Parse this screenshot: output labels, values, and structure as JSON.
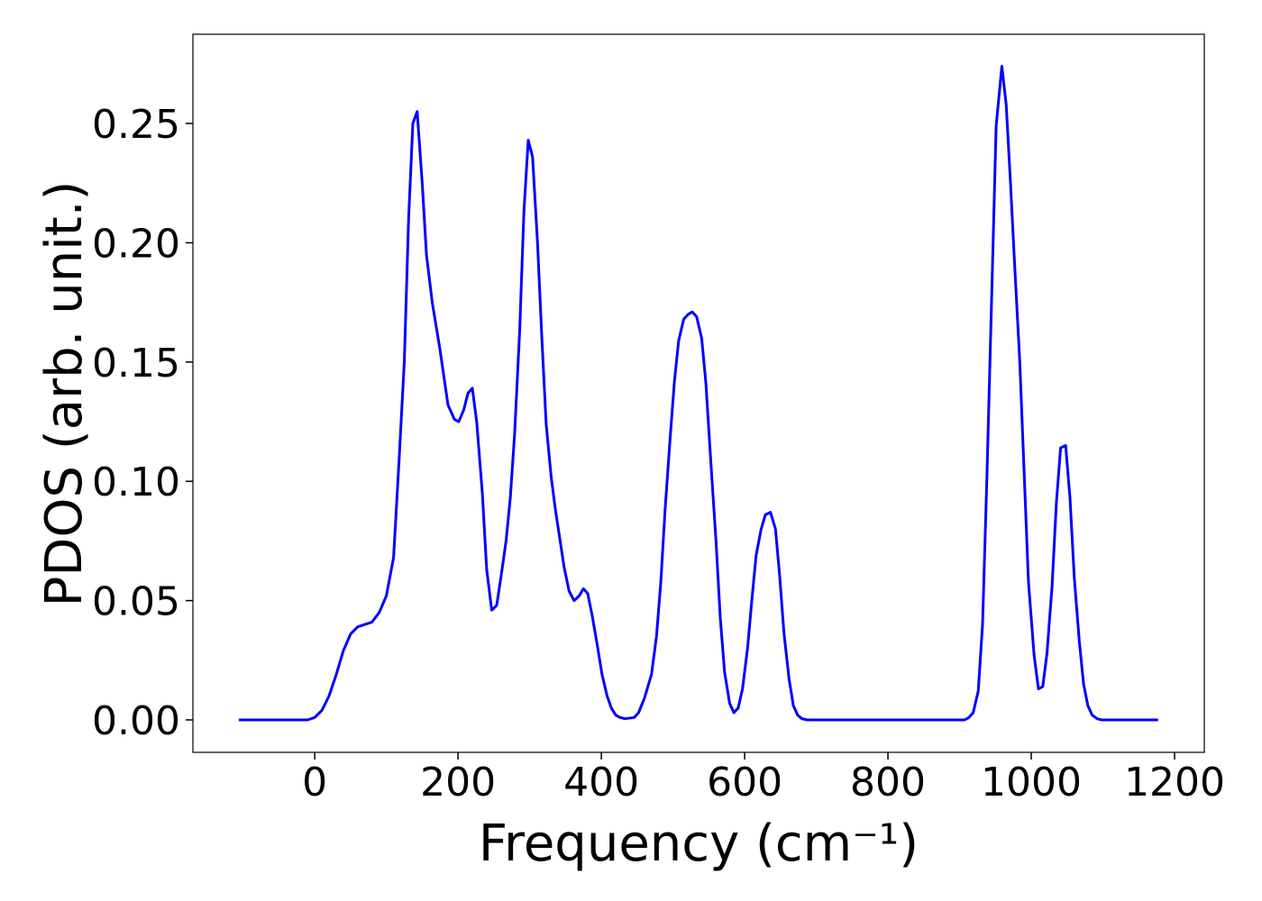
{
  "chart_data": {
    "type": "line",
    "xlabel": "Frequency (cm⁻¹)",
    "ylabel": "PDOS (arb. unit.)",
    "xlim": [
      -170,
      1241.5
    ],
    "ylim": [
      -0.0136,
      0.2874
    ],
    "xticks": [
      0,
      200,
      400,
      600,
      800,
      1000,
      1200
    ],
    "yticks": [
      {
        "value": 0,
        "label": "0.00"
      },
      {
        "value": 0.05,
        "label": "0.05"
      },
      {
        "value": 0.1,
        "label": "0.10"
      },
      {
        "value": 0.15,
        "label": "0.15"
      },
      {
        "value": 0.2,
        "label": "0.20"
      },
      {
        "value": 0.25,
        "label": "0.25"
      }
    ],
    "grid": false,
    "series": [
      {
        "color": "#0000ff",
        "x": [
          -106,
          -10,
          0,
          10,
          20,
          30,
          40,
          50,
          60,
          70,
          80,
          90,
          100,
          110,
          118,
          125,
          131,
          137,
          143,
          150,
          156,
          164,
          175,
          186,
          195,
          201,
          208,
          214,
          220,
          226,
          234,
          240,
          247,
          254,
          260,
          267,
          273,
          279,
          286,
          292,
          298,
          304,
          311,
          317,
          323,
          330,
          336,
          342,
          348,
          355,
          362,
          369,
          375,
          381,
          387,
          394,
          401,
          408,
          414,
          420,
          426,
          433,
          446,
          452,
          460,
          470,
          477,
          483,
          489,
          496,
          502,
          508,
          515,
          521,
          527,
          533,
          540,
          546,
          552,
          560,
          566,
          572,
          579,
          585,
          591,
          597,
          604,
          610,
          616,
          623,
          629,
          636,
          643,
          649,
          655,
          662,
          668,
          674,
          680,
          687,
          907,
          913,
          919,
          926,
          932,
          938,
          945,
          951,
          959,
          965,
          971,
          977,
          984,
          990,
          996,
          1004,
          1010,
          1016,
          1022,
          1029,
          1035,
          1041,
          1048,
          1054,
          1060,
          1067,
          1073,
          1079,
          1085,
          1092,
          1098,
          1177
        ],
        "values": [
          0,
          0,
          0.001,
          0.004,
          0.01,
          0.019,
          0.029,
          0.036,
          0.039,
          0.04,
          0.041,
          0.045,
          0.052,
          0.068,
          0.11,
          0.15,
          0.21,
          0.25,
          0.255,
          0.225,
          0.195,
          0.175,
          0.155,
          0.132,
          0.126,
          0.125,
          0.13,
          0.137,
          0.139,
          0.125,
          0.095,
          0.063,
          0.046,
          0.048,
          0.06,
          0.075,
          0.093,
          0.12,
          0.163,
          0.213,
          0.243,
          0.236,
          0.2,
          0.16,
          0.124,
          0.102,
          0.088,
          0.076,
          0.064,
          0.054,
          0.05,
          0.052,
          0.055,
          0.053,
          0.044,
          0.032,
          0.019,
          0.01,
          0.005,
          0.002,
          0.001,
          0.0005,
          0.001,
          0.003,
          0.009,
          0.019,
          0.035,
          0.058,
          0.088,
          0.118,
          0.142,
          0.159,
          0.168,
          0.17,
          0.171,
          0.169,
          0.16,
          0.141,
          0.112,
          0.075,
          0.043,
          0.02,
          0.007,
          0.003,
          0.005,
          0.013,
          0.03,
          0.05,
          0.069,
          0.08,
          0.086,
          0.087,
          0.08,
          0.06,
          0.036,
          0.017,
          0.006,
          0.002,
          0.0005,
          0,
          0,
          0.001,
          0.003,
          0.012,
          0.04,
          0.1,
          0.18,
          0.249,
          0.274,
          0.258,
          0.225,
          0.19,
          0.15,
          0.104,
          0.058,
          0.027,
          0.013,
          0.014,
          0.028,
          0.056,
          0.091,
          0.114,
          0.115,
          0.093,
          0.06,
          0.033,
          0.015,
          0.006,
          0.002,
          0.0005,
          0,
          0
        ]
      }
    ]
  }
}
